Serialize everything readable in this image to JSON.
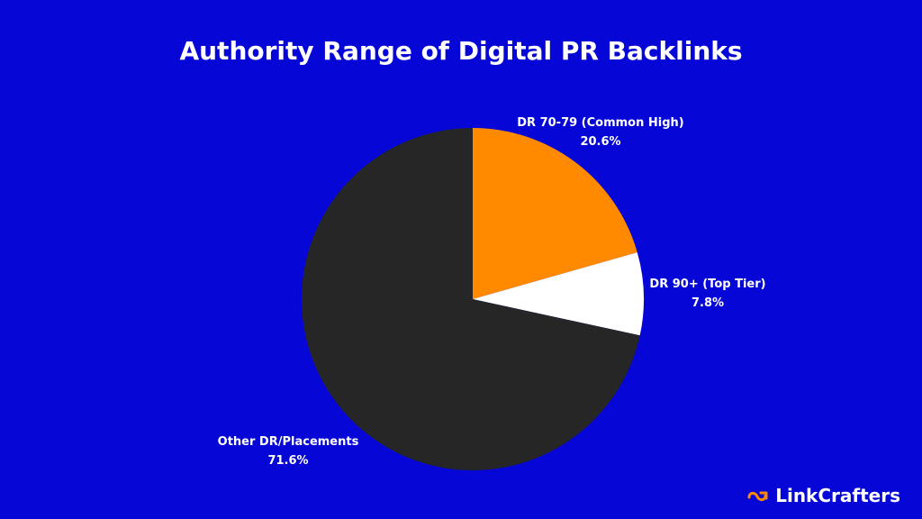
{
  "chart_data": {
    "type": "pie",
    "title": "Authority Range of Digital PR Backlinks",
    "slices": [
      {
        "label": "DR 70-79 (Common High)",
        "value": 20.6,
        "value_label": "20.6%",
        "color": "#ff8a00"
      },
      {
        "label": "DR 90+ (Top Tier)",
        "value": 7.8,
        "value_label": "7.8%",
        "color": "#ffffff"
      },
      {
        "label": "Other DR/Placements",
        "value": 71.6,
        "value_label": "71.6%",
        "color": "#262626"
      }
    ],
    "start_angle_deg": 0,
    "direction": "clockwise",
    "legend": "none"
  },
  "background_color": "#0606d6",
  "brand": {
    "name": "LinkCrafters",
    "icon": "link-icon",
    "icon_color": "#ff8a00"
  }
}
